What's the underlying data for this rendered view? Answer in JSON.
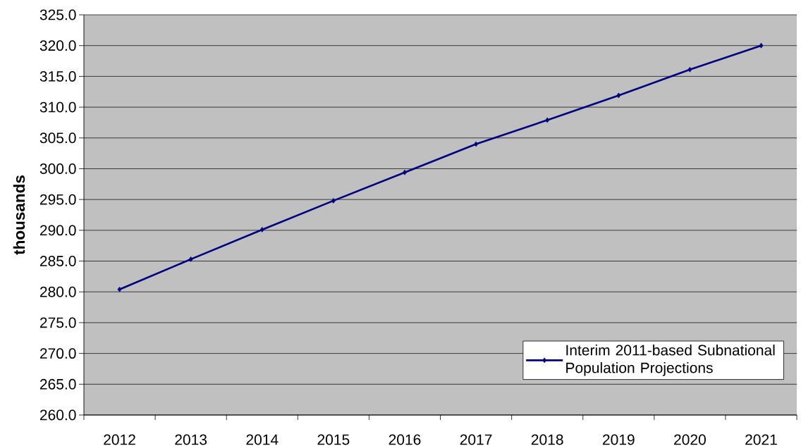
{
  "chart_data": {
    "type": "line",
    "ylabel": "thousands",
    "categories": [
      "2012",
      "2013",
      "2014",
      "2015",
      "2016",
      "2017",
      "2018",
      "2019",
      "2020",
      "2021"
    ],
    "series": [
      {
        "name": "Interim 2011-based Subnational Population Projections",
        "color": "#000080",
        "values": [
          280.4,
          285.3,
          290.1,
          294.8,
          299.4,
          304.0,
          307.9,
          311.9,
          316.1,
          320.0
        ]
      }
    ],
    "ylim": [
      260,
      325
    ],
    "yticks": [
      {
        "value": 260,
        "label": "260.0"
      },
      {
        "value": 265,
        "label": "265.0"
      },
      {
        "value": 270,
        "label": "270.0"
      },
      {
        "value": 275,
        "label": "275.0"
      },
      {
        "value": 280,
        "label": "280.0"
      },
      {
        "value": 285,
        "label": "285.0"
      },
      {
        "value": 290,
        "label": "290.0"
      },
      {
        "value": 295,
        "label": "295.0"
      },
      {
        "value": 300,
        "label": "300.0"
      },
      {
        "value": 305,
        "label": "305.0"
      },
      {
        "value": 310,
        "label": "310.0"
      },
      {
        "value": 315,
        "label": "315.0"
      },
      {
        "value": 320,
        "label": "320.0"
      },
      {
        "value": 325,
        "label": "325.0"
      }
    ],
    "grid": "y",
    "legend": "bottom right",
    "marker": "diamond",
    "line_style": "solid"
  }
}
